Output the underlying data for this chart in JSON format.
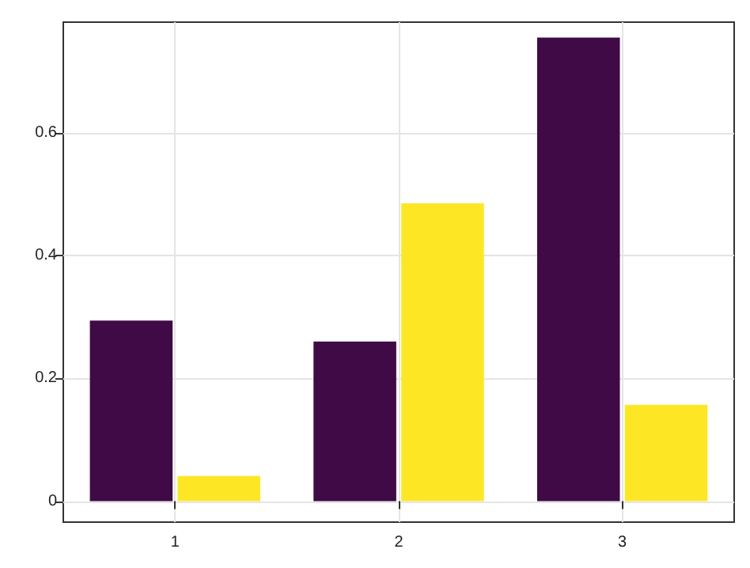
{
  "chart_data": {
    "type": "bar",
    "categories": [
      "1",
      "2",
      "3"
    ],
    "series": [
      {
        "color": "#3f0a45",
        "values": [
          0.294,
          0.26,
          0.755
        ]
      },
      {
        "color": "#fde725",
        "values": [
          0.041,
          0.485,
          0.157
        ]
      }
    ],
    "ylim": [
      -0.034,
      0.78
    ],
    "yticks": [
      0,
      0.2,
      0.4,
      0.6
    ],
    "grid": true
  }
}
